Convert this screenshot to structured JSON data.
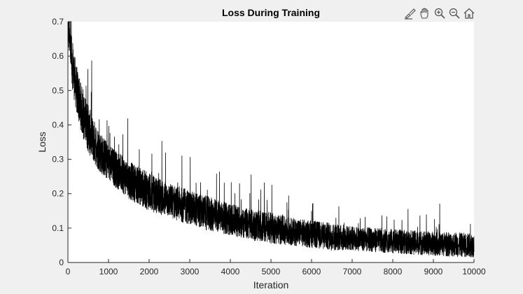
{
  "chart_data": {
    "type": "line",
    "title": "Loss During Training",
    "xlabel": "Iteration",
    "ylabel": "Loss",
    "xlim": [
      0,
      10000
    ],
    "ylim": [
      0,
      0.7
    ],
    "xticks": [
      0,
      1000,
      2000,
      3000,
      4000,
      5000,
      6000,
      7000,
      8000,
      9000,
      10000
    ],
    "yticks": [
      0,
      0.1,
      0.2,
      0.3,
      0.4,
      0.5,
      0.6,
      0.7
    ],
    "xtick_labels": [
      "0",
      "1000",
      "2000",
      "3000",
      "4000",
      "5000",
      "6000",
      "7000",
      "8000",
      "9000",
      "10000"
    ],
    "ytick_labels": [
      "0",
      "0.1",
      "0.2",
      "0.3",
      "0.4",
      "0.5",
      "0.6",
      "0.7"
    ],
    "grid": false,
    "series": [
      {
        "color": "#000000",
        "x": [
          0,
          100,
          200,
          300,
          400,
          500,
          600,
          800,
          1000,
          1200,
          1500,
          1800,
          2000,
          2500,
          3000,
          3500,
          4000,
          4500,
          5000,
          5500,
          6000,
          6500,
          7000,
          7500,
          8000,
          8500,
          9000,
          9500,
          10000
        ],
        "y": [
          0.69,
          0.58,
          0.51,
          0.46,
          0.42,
          0.39,
          0.36,
          0.32,
          0.29,
          0.27,
          0.24,
          0.22,
          0.205,
          0.18,
          0.16,
          0.14,
          0.125,
          0.11,
          0.1,
          0.09,
          0.082,
          0.075,
          0.07,
          0.066,
          0.062,
          0.058,
          0.055,
          0.052,
          0.05
        ],
        "y_spread": [
          0.05,
          0.07,
          0.07,
          0.07,
          0.07,
          0.07,
          0.065,
          0.06,
          0.055,
          0.055,
          0.055,
          0.055,
          0.055,
          0.05,
          0.05,
          0.05,
          0.045,
          0.045,
          0.045,
          0.04,
          0.04,
          0.04,
          0.035,
          0.035,
          0.035,
          0.035,
          0.035,
          0.035,
          0.035
        ]
      }
    ]
  },
  "toolbar": {
    "icons": [
      "brush-icon",
      "pan-hand-icon",
      "zoom-in-icon",
      "zoom-out-icon",
      "home-icon"
    ]
  }
}
